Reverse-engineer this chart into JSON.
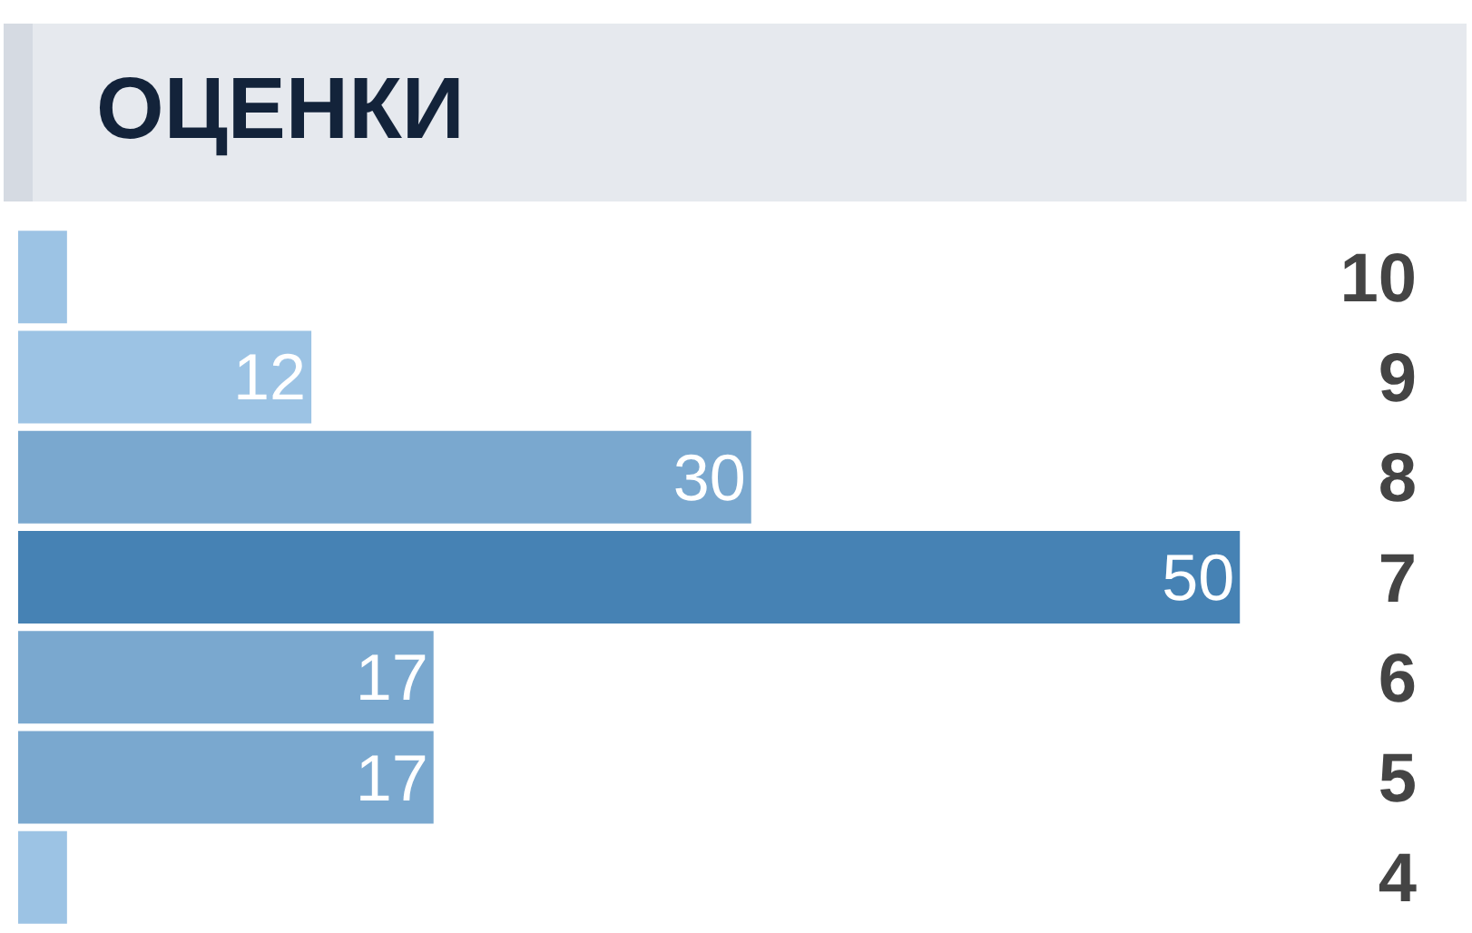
{
  "chart_data": {
    "type": "bar",
    "orientation": "horizontal",
    "title": "ОЦЕНКИ",
    "categories": [
      "10",
      "9",
      "8",
      "7",
      "6",
      "5",
      "4"
    ],
    "values": [
      2,
      12,
      30,
      50,
      17,
      17,
      2
    ],
    "colors": [
      "#9cc3e4",
      "#9cc3e4",
      "#7aa8cf",
      "#4682b4",
      "#7aa8cf",
      "#7aa8cf",
      "#9cc3e4"
    ],
    "value_labels": [
      null,
      "12",
      "30",
      "50",
      "17",
      "17",
      null
    ],
    "tick_labels": "y"
  }
}
